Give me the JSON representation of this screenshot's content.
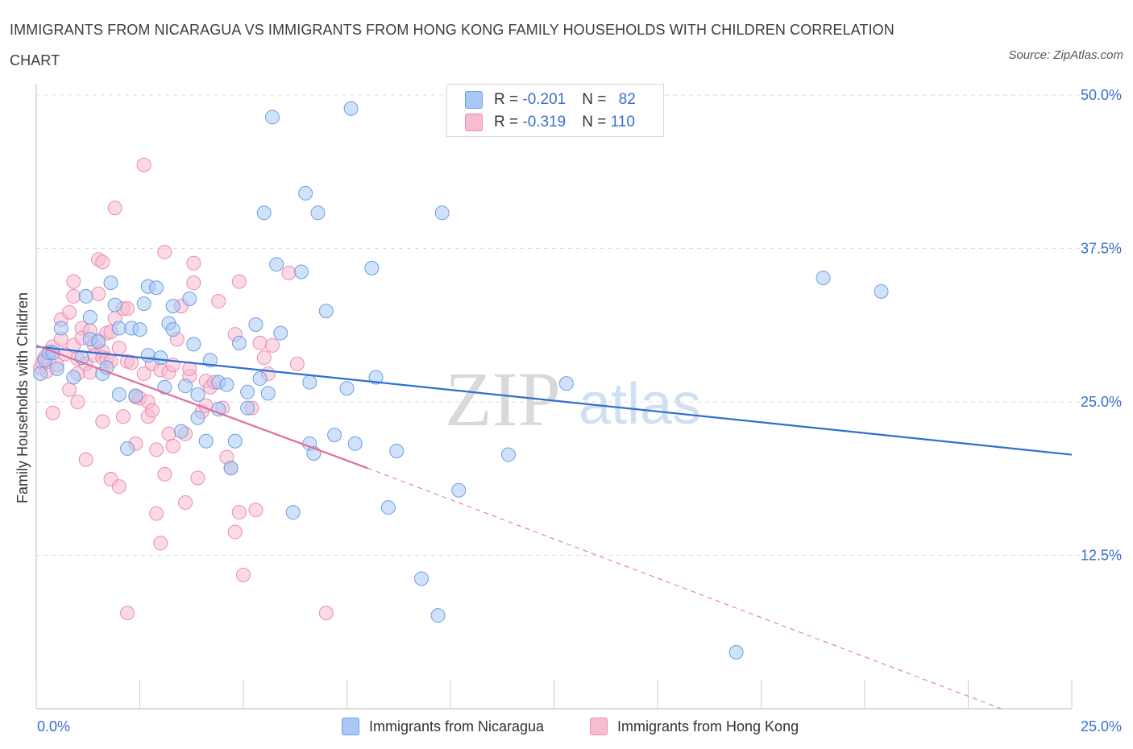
{
  "title": "IMMIGRANTS FROM NICARAGUA VS IMMIGRANTS FROM HONG KONG FAMILY HOUSEHOLDS WITH CHILDREN CORRELATION CHART",
  "source": "Source: ZipAtlas.com",
  "watermark": {
    "zip": "ZIP",
    "atlas": "atlas"
  },
  "legend": {
    "nicaragua": {
      "r_label": "R = ",
      "r_value": "-0.201",
      "n_label": "N = ",
      "n_value": "82"
    },
    "hongkong": {
      "r_label": "R = ",
      "r_value": "-0.319",
      "n_label": "N = ",
      "n_value": "110"
    }
  },
  "bottom_legend": {
    "nicaragua": "Immigrants from Nicaragua",
    "hongkong": "Immigrants from Hong Kong"
  },
  "colors": {
    "nicaragua_fill": "#a9c8f5",
    "nicaragua_stroke": "#6f9fe0",
    "nicaragua_line": "#2f6fcf",
    "hongkong_fill": "#f7bcd0",
    "hongkong_stroke": "#ec8db0",
    "hongkong_line": "#e0709a",
    "tick": "#3a6fd0",
    "grid": "#dddddd"
  },
  "chart_data": {
    "type": "scatter",
    "title": "IMMIGRANTS FROM NICARAGUA VS IMMIGRANTS FROM HONG KONG FAMILY HOUSEHOLDS WITH CHILDREN CORRELATION CHART",
    "xlabel": "",
    "ylabel": "Family Households with Children",
    "xlim": [
      0,
      25
    ],
    "ylim": [
      0,
      50
    ],
    "x_tick_labels": [
      "0.0%",
      "25.0%"
    ],
    "y_ticks": [
      12.5,
      25.0,
      37.5,
      50.0
    ],
    "y_tick_labels": [
      "12.5%",
      "25.0%",
      "37.5%",
      "50.0%"
    ],
    "series": [
      {
        "name": "Immigrants from Nicaragua",
        "points": [
          [
            0.1,
            27.3
          ],
          [
            0.2,
            28.4
          ],
          [
            0.3,
            29.0
          ],
          [
            0.4,
            29.0
          ],
          [
            0.5,
            27.7
          ],
          [
            0.6,
            31.0
          ],
          [
            0.9,
            27.0
          ],
          [
            1.1,
            28.6
          ],
          [
            1.3,
            30.1
          ],
          [
            1.2,
            33.6
          ],
          [
            1.3,
            31.9
          ],
          [
            1.5,
            29.9
          ],
          [
            1.6,
            27.3
          ],
          [
            1.7,
            27.8
          ],
          [
            1.8,
            34.7
          ],
          [
            1.9,
            32.9
          ],
          [
            2.0,
            31.0
          ],
          [
            2.0,
            25.6
          ],
          [
            2.2,
            21.2
          ],
          [
            2.3,
            31.0
          ],
          [
            2.4,
            25.5
          ],
          [
            2.5,
            30.9
          ],
          [
            2.6,
            33.0
          ],
          [
            2.7,
            28.8
          ],
          [
            2.7,
            34.4
          ],
          [
            2.9,
            34.3
          ],
          [
            3.0,
            28.6
          ],
          [
            3.1,
            26.2
          ],
          [
            3.2,
            31.4
          ],
          [
            3.3,
            32.8
          ],
          [
            3.3,
            30.9
          ],
          [
            3.5,
            22.6
          ],
          [
            3.6,
            26.3
          ],
          [
            3.7,
            33.4
          ],
          [
            3.8,
            29.7
          ],
          [
            3.9,
            23.7
          ],
          [
            3.9,
            25.6
          ],
          [
            4.1,
            21.8
          ],
          [
            4.2,
            28.4
          ],
          [
            4.4,
            26.6
          ],
          [
            4.4,
            24.4
          ],
          [
            4.6,
            26.4
          ],
          [
            4.7,
            19.6
          ],
          [
            4.8,
            21.8
          ],
          [
            4.9,
            29.8
          ],
          [
            5.1,
            25.8
          ],
          [
            5.1,
            24.5
          ],
          [
            5.3,
            31.3
          ],
          [
            5.4,
            26.9
          ],
          [
            5.5,
            40.4
          ],
          [
            5.6,
            25.7
          ],
          [
            5.7,
            48.2
          ],
          [
            5.8,
            36.2
          ],
          [
            5.9,
            30.6
          ],
          [
            6.2,
            16.0
          ],
          [
            6.4,
            35.6
          ],
          [
            6.5,
            42.0
          ],
          [
            6.6,
            21.6
          ],
          [
            6.6,
            26.6
          ],
          [
            6.7,
            20.8
          ],
          [
            6.8,
            40.4
          ],
          [
            7.0,
            32.4
          ],
          [
            7.2,
            22.3
          ],
          [
            7.5,
            26.1
          ],
          [
            7.6,
            48.9
          ],
          [
            7.7,
            21.6
          ],
          [
            8.1,
            35.9
          ],
          [
            8.2,
            27.0
          ],
          [
            8.5,
            16.4
          ],
          [
            8.7,
            21.0
          ],
          [
            9.3,
            10.6
          ],
          [
            9.7,
            7.6
          ],
          [
            9.8,
            40.4
          ],
          [
            10.2,
            17.8
          ],
          [
            11.4,
            20.7
          ],
          [
            12.8,
            26.5
          ],
          [
            16.9,
            4.6
          ],
          [
            19.0,
            35.1
          ],
          [
            20.4,
            34.0
          ]
        ]
      },
      {
        "name": "Immigrants from Hong Kong",
        "points": [
          [
            0.1,
            27.8
          ],
          [
            0.15,
            28.2
          ],
          [
            0.2,
            28.6
          ],
          [
            0.25,
            27.5
          ],
          [
            0.3,
            28.3
          ],
          [
            0.35,
            29.1
          ],
          [
            0.4,
            29.5
          ],
          [
            0.5,
            28.0
          ],
          [
            0.4,
            24.1
          ],
          [
            0.6,
            30.1
          ],
          [
            0.6,
            31.7
          ],
          [
            0.7,
            28.9
          ],
          [
            0.8,
            32.3
          ],
          [
            0.8,
            26.0
          ],
          [
            0.9,
            34.8
          ],
          [
            0.9,
            33.6
          ],
          [
            0.9,
            29.6
          ],
          [
            1.0,
            28.5
          ],
          [
            1.0,
            27.3
          ],
          [
            1.0,
            25.0
          ],
          [
            1.1,
            31.0
          ],
          [
            1.1,
            30.2
          ],
          [
            1.2,
            20.3
          ],
          [
            1.2,
            28.1
          ],
          [
            1.3,
            27.4
          ],
          [
            1.3,
            30.8
          ],
          [
            1.4,
            29.6
          ],
          [
            1.4,
            28.8
          ],
          [
            1.5,
            36.6
          ],
          [
            1.5,
            33.8
          ],
          [
            1.5,
            30.0
          ],
          [
            1.6,
            36.4
          ],
          [
            1.6,
            29.1
          ],
          [
            1.6,
            28.6
          ],
          [
            1.6,
            23.4
          ],
          [
            1.7,
            30.6
          ],
          [
            1.7,
            28.5
          ],
          [
            1.8,
            28.3
          ],
          [
            1.8,
            18.7
          ],
          [
            1.8,
            30.7
          ],
          [
            1.9,
            40.8
          ],
          [
            1.9,
            31.8
          ],
          [
            2.0,
            18.1
          ],
          [
            2.0,
            29.4
          ],
          [
            2.1,
            32.6
          ],
          [
            2.1,
            23.8
          ],
          [
            2.2,
            32.6
          ],
          [
            2.2,
            28.3
          ],
          [
            2.3,
            28.2
          ],
          [
            2.4,
            21.6
          ],
          [
            2.4,
            25.4
          ],
          [
            2.5,
            25.3
          ],
          [
            2.6,
            44.3
          ],
          [
            2.6,
            27.3
          ],
          [
            2.7,
            25.0
          ],
          [
            2.7,
            23.8
          ],
          [
            2.8,
            28.1
          ],
          [
            2.8,
            24.3
          ],
          [
            2.9,
            15.9
          ],
          [
            2.9,
            21.1
          ],
          [
            3.0,
            27.6
          ],
          [
            3.0,
            13.5
          ],
          [
            3.1,
            37.2
          ],
          [
            3.1,
            19.1
          ],
          [
            3.2,
            22.4
          ],
          [
            3.2,
            27.4
          ],
          [
            3.3,
            28.0
          ],
          [
            3.3,
            21.4
          ],
          [
            3.4,
            30.1
          ],
          [
            3.5,
            32.8
          ],
          [
            3.6,
            16.8
          ],
          [
            3.6,
            22.4
          ],
          [
            3.7,
            27.1
          ],
          [
            3.7,
            27.7
          ],
          [
            3.8,
            34.7
          ],
          [
            3.8,
            36.3
          ],
          [
            3.9,
            18.8
          ],
          [
            4.0,
            24.2
          ],
          [
            4.1,
            24.7
          ],
          [
            4.1,
            26.7
          ],
          [
            4.2,
            26.2
          ],
          [
            4.3,
            26.6
          ],
          [
            4.4,
            33.2
          ],
          [
            4.5,
            24.5
          ],
          [
            4.6,
            20.5
          ],
          [
            4.7,
            19.6
          ],
          [
            4.8,
            14.4
          ],
          [
            4.8,
            30.5
          ],
          [
            4.9,
            34.8
          ],
          [
            4.9,
            16.0
          ],
          [
            5.0,
            10.9
          ],
          [
            5.2,
            24.5
          ],
          [
            5.3,
            16.2
          ],
          [
            5.4,
            29.8
          ],
          [
            5.5,
            28.6
          ],
          [
            5.6,
            27.3
          ],
          [
            5.7,
            29.6
          ],
          [
            6.1,
            35.5
          ],
          [
            6.3,
            28.1
          ],
          [
            7.0,
            7.8
          ],
          [
            2.2,
            7.8
          ]
        ]
      }
    ],
    "trend_lines": [
      {
        "series": "Immigrants from Nicaragua",
        "x": [
          0.0,
          25.0
        ],
        "y": [
          29.5,
          20.7
        ],
        "style": "solid"
      },
      {
        "series": "Immigrants from Hong Kong",
        "x": [
          0.0,
          8.0
        ],
        "y": [
          29.6,
          19.6
        ],
        "style": "solid"
      },
      {
        "series": "Immigrants from Hong Kong",
        "x": [
          8.0,
          23.3
        ],
        "y": [
          19.6,
          0.0
        ],
        "style": "dashed"
      }
    ]
  }
}
